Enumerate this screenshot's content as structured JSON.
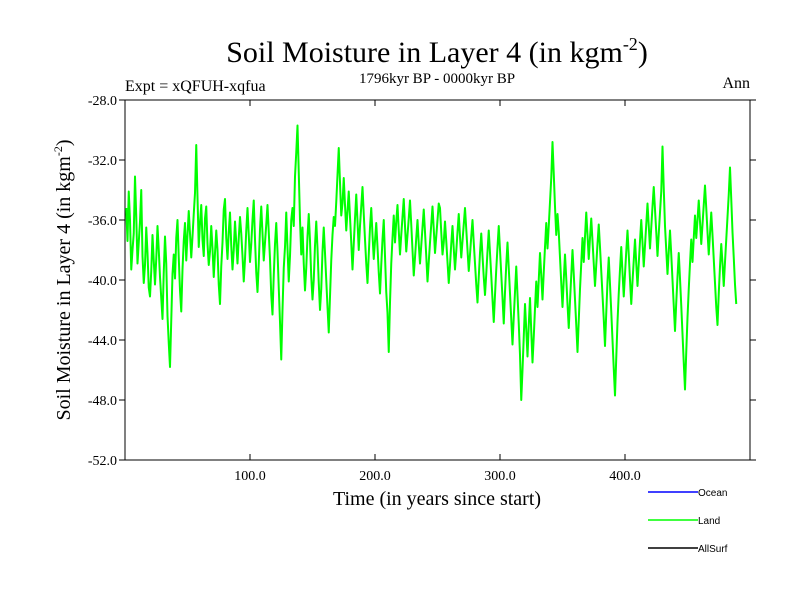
{
  "chart_data": {
    "type": "line",
    "title": {
      "main": "Soil Moisture in Layer 4 (in kgm",
      "sup": "-2",
      "close": ")"
    },
    "subtitle": "1796kyr BP - 0000kyr BP",
    "left_label": "Expt = xQFUH-xqfua",
    "right_label": "Ann",
    "xlabel": "Time (in years since start)",
    "ylabel": {
      "main": "Soil Moisture in Layer 4 (in kgm",
      "sup": "-2",
      "close": ")"
    },
    "xlim": [
      0,
      500
    ],
    "ylim": [
      -52.0,
      -28.0
    ],
    "x_ticks": [
      100,
      200,
      300,
      400
    ],
    "x_tick_labels": [
      "100.0",
      "200.0",
      "300.0",
      "400.0"
    ],
    "y_ticks": [
      -52,
      -48,
      -44,
      -40,
      -36,
      -32,
      -28
    ],
    "y_tick_labels": [
      "-52.0",
      "-48.0",
      "-44.0",
      "-40.0",
      "-36.0",
      "-32.0",
      "-28.0"
    ],
    "legend": [
      {
        "name": "Ocean",
        "color": "#0000ff"
      },
      {
        "name": "Land",
        "color": "#00ff00"
      },
      {
        "name": "AllSurf",
        "color": "#000000"
      }
    ],
    "series": [
      {
        "name": "Land",
        "color": "#00ff00",
        "x_start": 1,
        "x_step": 1,
        "values": [
          -35.2,
          -37.4,
          -34.1,
          -36.0,
          -39.3,
          -38.0,
          -36.9,
          -33.1,
          -35.8,
          -38.9,
          -37.5,
          -36.1,
          -34.0,
          -38.4,
          -40.2,
          -39.0,
          -36.5,
          -38.2,
          -40.5,
          -41.1,
          -39.4,
          -37.0,
          -38.7,
          -40.3,
          -38.6,
          -36.4,
          -38.0,
          -39.8,
          -41.2,
          -42.6,
          -39.5,
          -37.1,
          -38.9,
          -42.4,
          -44.2,
          -45.8,
          -42.7,
          -39.6,
          -38.3,
          -39.9,
          -37.2,
          -36.0,
          -38.5,
          -40.7,
          -42.1,
          -39.3,
          -37.4,
          -36.2,
          -38.7,
          -37.0,
          -35.4,
          -36.9,
          -38.5,
          -37.1,
          -35.6,
          -34.2,
          -31.0,
          -34.5,
          -37.8,
          -36.2,
          -35.0,
          -37.3,
          -38.4,
          -35.9,
          -35.1,
          -37.6,
          -39.0,
          -38.1,
          -36.4,
          -37.9,
          -39.8,
          -38.2,
          -36.7,
          -38.0,
          -40.3,
          -41.6,
          -39.1,
          -37.5,
          -35.3,
          -34.6,
          -37.2,
          -38.6,
          -36.8,
          -35.5,
          -37.7,
          -39.3,
          -38.0,
          -36.1,
          -37.5,
          -38.9,
          -37.2,
          -35.8,
          -36.9,
          -38.4,
          -40.1,
          -38.6,
          -36.7,
          -35.2,
          -37.0,
          -38.8,
          -37.6,
          -36.0,
          -34.7,
          -37.3,
          -39.5,
          -40.8,
          -38.9,
          -36.6,
          -35.1,
          -36.9,
          -38.7,
          -37.5,
          -36.3,
          -35.0,
          -36.8,
          -38.6,
          -41.0,
          -42.3,
          -39.7,
          -37.6,
          -36.2,
          -38.1,
          -40.5,
          -42.8,
          -45.3,
          -42.0,
          -39.2,
          -37.8,
          -35.5,
          -37.9,
          -40.1,
          -38.4,
          -36.0,
          -35.2,
          -36.4,
          -33.1,
          -31.5,
          -29.7,
          -32.8,
          -36.0,
          -38.3,
          -36.5,
          -38.9,
          -40.7,
          -39.2,
          -37.1,
          -35.6,
          -37.4,
          -39.8,
          -41.3,
          -40.0,
          -37.7,
          -36.1,
          -37.9,
          -40.2,
          -42.0,
          -40.6,
          -38.1,
          -36.5,
          -38.2,
          -40.0,
          -41.8,
          -43.5,
          -41.1,
          -38.7,
          -37.0,
          -35.8,
          -36.4,
          -34.8,
          -33.0,
          -31.2,
          -33.5,
          -35.7,
          -34.9,
          -33.2,
          -35.0,
          -36.7,
          -35.4,
          -34.1,
          -35.8,
          -37.5,
          -39.3,
          -37.6,
          -35.9,
          -34.3,
          -36.1,
          -38.0,
          -36.4,
          -35.1,
          -33.8,
          -35.6,
          -37.3,
          -38.9,
          -40.2,
          -38.3,
          -36.5,
          -35.2,
          -37.0,
          -38.6,
          -37.4,
          -36.2,
          -37.8,
          -39.5,
          -40.9,
          -39.0,
          -37.3,
          -36.0,
          -38.4,
          -40.8,
          -42.2,
          -44.8,
          -41.5,
          -38.9,
          -37.2,
          -35.7,
          -37.5,
          -36.1,
          -35.0,
          -36.7,
          -38.3,
          -37.0,
          -35.8,
          -34.6,
          -36.4,
          -38.1,
          -37.0,
          -35.9,
          -34.7,
          -36.3,
          -38.0,
          -39.7,
          -38.5,
          -37.2,
          -36.0,
          -37.6,
          -38.9,
          -37.7,
          -36.5,
          -35.3,
          -36.8,
          -38.4,
          -40.1,
          -38.8,
          -37.5,
          -36.3,
          -35.1,
          -36.6,
          -38.2,
          -37.1,
          -36.0,
          -34.9,
          -35.2,
          -36.8,
          -38.3,
          -37.5,
          -36.1,
          -37.4,
          -38.8,
          -40.2,
          -39.0,
          -37.6,
          -36.4,
          -37.9,
          -39.3,
          -38.1,
          -36.8,
          -35.6,
          -37.1,
          -38.5,
          -37.4,
          -36.3,
          -35.2,
          -36.6,
          -38.0,
          -39.4,
          -38.3,
          -37.1,
          -36.0,
          -37.5,
          -38.9,
          -40.3,
          -41.5,
          -39.8,
          -38.2,
          -36.9,
          -38.4,
          -39.8,
          -41.0,
          -39.6,
          -38.1,
          -36.7,
          -38.2,
          -39.7,
          -41.3,
          -42.8,
          -41.0,
          -39.3,
          -37.8,
          -36.4,
          -38.0,
          -39.6,
          -41.2,
          -42.9,
          -40.8,
          -39.0,
          -37.5,
          -39.2,
          -40.9,
          -42.6,
          -44.3,
          -42.5,
          -40.8,
          -39.1,
          -41.0,
          -42.9,
          -45.0,
          -48.0,
          -46.0,
          -43.8,
          -41.6,
          -43.3,
          -45.1,
          -43.0,
          -41.2,
          -43.4,
          -45.5,
          -43.8,
          -41.9,
          -40.1,
          -41.8,
          -40.0,
          -38.2,
          -39.7,
          -41.3,
          -39.5,
          -37.8,
          -36.2,
          -37.9,
          -36.4,
          -34.8,
          -33.2,
          -30.8,
          -32.9,
          -35.1,
          -37.0,
          -35.6,
          -36.8,
          -38.5,
          -40.2,
          -41.8,
          -40.0,
          -38.3,
          -39.9,
          -41.6,
          -43.2,
          -41.4,
          -39.7,
          -38.0,
          -39.6,
          -41.3,
          -43.0,
          -44.8,
          -42.7,
          -40.6,
          -38.9,
          -37.2,
          -38.8,
          -37.1,
          -35.5,
          -37.0,
          -38.6,
          -37.2,
          -35.9,
          -37.4,
          -38.9,
          -40.4,
          -39.0,
          -37.6,
          -36.3,
          -37.8,
          -39.4,
          -41.0,
          -42.6,
          -44.4,
          -42.2,
          -40.1,
          -38.5,
          -40.3,
          -42.1,
          -44.0,
          -45.9,
          -47.7,
          -45.2,
          -42.8,
          -40.9,
          -39.3,
          -37.8,
          -39.5,
          -41.1,
          -39.6,
          -38.1,
          -36.7,
          -38.3,
          -40.0,
          -41.6,
          -40.1,
          -38.7,
          -37.3,
          -38.9,
          -40.4,
          -38.9,
          -37.4,
          -36.0,
          -37.5,
          -39.1,
          -37.7,
          -36.3,
          -34.9,
          -36.4,
          -37.9,
          -36.5,
          -35.1,
          -33.8,
          -35.3,
          -36.8,
          -38.4,
          -36.9,
          -35.5,
          -34.1,
          -31.1,
          -33.9,
          -36.4,
          -38.0,
          -39.6,
          -38.1,
          -36.7,
          -38.3,
          -40.0,
          -41.7,
          -43.4,
          -41.5,
          -39.8,
          -38.2,
          -39.9,
          -41.7,
          -43.6,
          -45.5,
          -47.3,
          -44.8,
          -42.5,
          -40.6,
          -38.9,
          -37.3,
          -38.8,
          -37.2,
          -35.7,
          -37.2,
          -36.0,
          -34.7,
          -36.1,
          -37.6,
          -36.3,
          -35.0,
          -33.7,
          -35.2,
          -36.8,
          -38.3,
          -36.9,
          -35.5,
          -37.0,
          -38.6,
          -40.2,
          -41.8,
          -43.0,
          -40.9,
          -39.1,
          -37.6,
          -38.9,
          -40.4,
          -38.8,
          -37.3,
          -35.8,
          -34.3,
          -32.5,
          -34.6,
          -36.8,
          -38.5,
          -40.3,
          -41.6
        ]
      }
    ]
  }
}
